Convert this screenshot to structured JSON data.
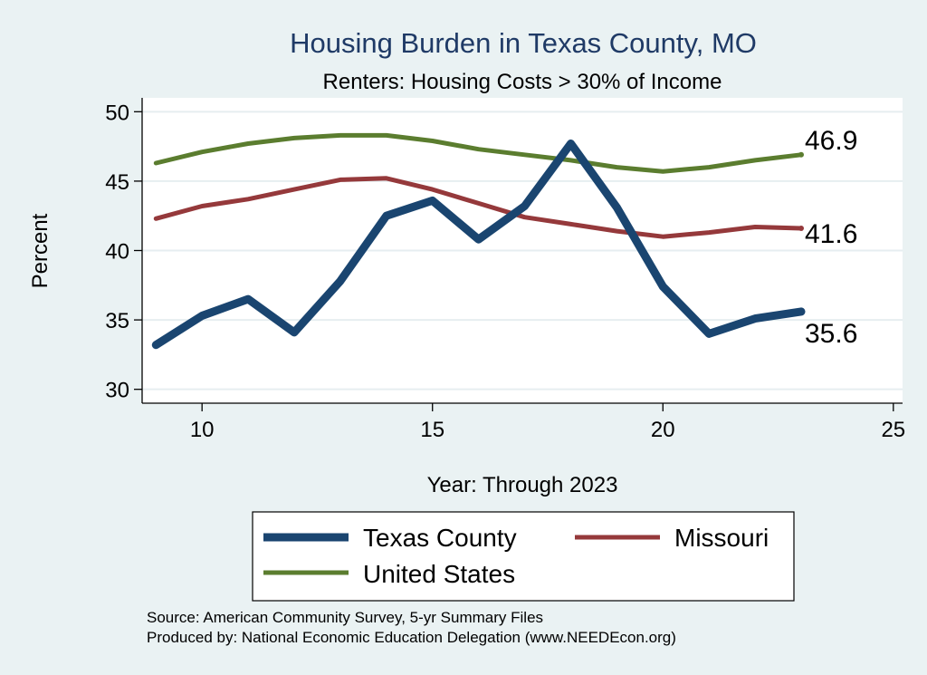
{
  "chart_data": {
    "type": "line",
    "title": "Housing Burden in Texas County, MO",
    "subtitle": "Renters: Housing Costs > 30% of Income",
    "xlabel": "Year: Through 2023",
    "ylabel": "Percent",
    "xlim": [
      8.7,
      25.2
    ],
    "ylim": [
      29,
      51
    ],
    "x_ticks": [
      10,
      15,
      20,
      25
    ],
    "y_ticks": [
      30,
      35,
      40,
      45,
      50
    ],
    "grid": true,
    "legend_position": "bottom",
    "series": [
      {
        "name": "Texas County",
        "color": "#1a4570",
        "x": [
          9,
          10,
          11,
          12,
          13,
          14,
          15,
          16,
          17,
          18,
          19,
          20,
          21,
          22,
          23
        ],
        "values": [
          33.2,
          35.3,
          36.5,
          34.1,
          37.8,
          42.5,
          43.6,
          40.8,
          43.2,
          47.7,
          43.1,
          37.4,
          34.0,
          35.1,
          35.6
        ],
        "end_label": "35.6"
      },
      {
        "name": "Missouri",
        "color": "#95393b",
        "x": [
          9,
          10,
          11,
          12,
          13,
          14,
          15,
          16,
          17,
          18,
          19,
          20,
          21,
          22,
          23
        ],
        "values": [
          42.3,
          43.2,
          43.7,
          44.4,
          45.1,
          45.2,
          44.4,
          43.4,
          42.4,
          41.9,
          41.4,
          41.0,
          41.3,
          41.7,
          41.6
        ],
        "end_label": "41.6"
      },
      {
        "name": "United States",
        "color": "#5b7d2f",
        "x": [
          9,
          10,
          11,
          12,
          13,
          14,
          15,
          16,
          17,
          18,
          19,
          20,
          21,
          22,
          23
        ],
        "values": [
          46.3,
          47.1,
          47.7,
          48.1,
          48.3,
          48.3,
          47.9,
          47.3,
          46.9,
          46.5,
          46.0,
          45.7,
          46.0,
          46.5,
          46.9
        ],
        "end_label": "46.9"
      }
    ]
  },
  "notes": {
    "source": "Source: American Community Survey, 5-yr Summary Files",
    "produced": "Produced by: National Economic Education Delegation (www.NEEDEcon.org)"
  }
}
